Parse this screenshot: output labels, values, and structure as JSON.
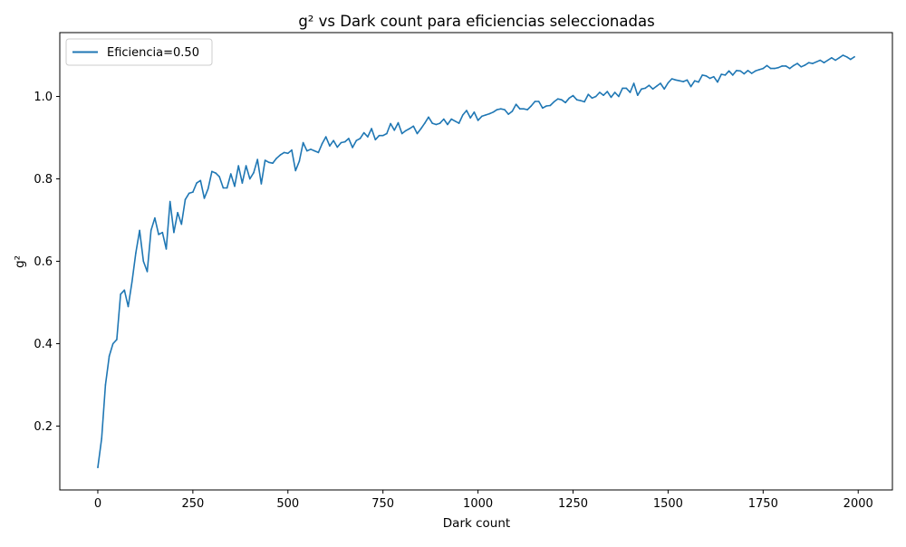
{
  "chart_data": {
    "type": "line",
    "title": "g² vs Dark count para eficiencias seleccionadas",
    "xlabel": "Dark count",
    "ylabel": "g²",
    "xlim": [
      -100,
      2090
    ],
    "ylim": [
      0.045,
      1.155
    ],
    "xticks": [
      0,
      250,
      500,
      750,
      1000,
      1250,
      1500,
      1750,
      2000
    ],
    "xtick_labels": [
      "0",
      "250",
      "500",
      "750",
      "1000",
      "1250",
      "1500",
      "1750",
      "2000"
    ],
    "yticks": [
      0.2,
      0.4,
      0.6,
      0.8,
      1.0
    ],
    "ytick_labels": [
      "0.2",
      "0.4",
      "0.6",
      "0.8",
      "1.0"
    ],
    "grid": false,
    "legend_position": "top-left",
    "series": [
      {
        "name": "Eficiencia=0.50",
        "color": "#1f77b4",
        "x": [
          0,
          10,
          20,
          30,
          40,
          50,
          60,
          70,
          80,
          90,
          100,
          110,
          120,
          130,
          140,
          150,
          160,
          170,
          180,
          190,
          200,
          210,
          220,
          230,
          240,
          250,
          260,
          270,
          280,
          290,
          300,
          310,
          320,
          330,
          340,
          350,
          360,
          370,
          380,
          390,
          400,
          410,
          420,
          430,
          440,
          450,
          460,
          470,
          480,
          490,
          500,
          510,
          520,
          530,
          540,
          550,
          560,
          570,
          580,
          590,
          600,
          610,
          620,
          630,
          640,
          650,
          660,
          670,
          680,
          690,
          700,
          710,
          720,
          730,
          740,
          750,
          760,
          770,
          780,
          790,
          800,
          810,
          820,
          830,
          840,
          850,
          860,
          870,
          880,
          890,
          900,
          910,
          920,
          930,
          940,
          950,
          960,
          970,
          980,
          990,
          1000,
          1010,
          1020,
          1030,
          1040,
          1050,
          1060,
          1070,
          1080,
          1090,
          1100,
          1110,
          1120,
          1130,
          1140,
          1150,
          1160,
          1170,
          1180,
          1190,
          1200,
          1210,
          1220,
          1230,
          1240,
          1250,
          1260,
          1270,
          1280,
          1290,
          1300,
          1310,
          1320,
          1330,
          1340,
          1350,
          1360,
          1370,
          1380,
          1390,
          1400,
          1410,
          1420,
          1430,
          1440,
          1450,
          1460,
          1470,
          1480,
          1490,
          1500,
          1510,
          1520,
          1530,
          1540,
          1550,
          1560,
          1570,
          1580,
          1590,
          1600,
          1610,
          1620,
          1630,
          1640,
          1650,
          1660,
          1670,
          1680,
          1690,
          1700,
          1710,
          1720,
          1730,
          1740,
          1750,
          1760,
          1770,
          1780,
          1790,
          1800,
          1810,
          1820,
          1830,
          1840,
          1850,
          1860,
          1870,
          1880,
          1890,
          1900,
          1910,
          1920,
          1930,
          1940,
          1950,
          1960,
          1970,
          1980,
          1990
        ],
        "values": [
          0.1,
          0.17,
          0.3,
          0.37,
          0.4,
          0.41,
          0.52,
          0.53,
          0.49,
          0.55,
          0.62,
          0.675,
          0.6,
          0.575,
          0.675,
          0.705,
          0.665,
          0.67,
          0.63,
          0.745,
          0.67,
          0.718,
          0.69,
          0.75,
          0.765,
          0.768,
          0.79,
          0.796,
          0.753,
          0.776,
          0.818,
          0.814,
          0.805,
          0.778,
          0.778,
          0.812,
          0.782,
          0.832,
          0.79,
          0.832,
          0.8,
          0.815,
          0.847,
          0.788,
          0.845,
          0.84,
          0.838,
          0.85,
          0.858,
          0.864,
          0.862,
          0.87,
          0.82,
          0.843,
          0.888,
          0.868,
          0.872,
          0.868,
          0.864,
          0.885,
          0.902,
          0.88,
          0.893,
          0.877,
          0.888,
          0.89,
          0.898,
          0.876,
          0.893,
          0.898,
          0.912,
          0.902,
          0.922,
          0.895,
          0.905,
          0.905,
          0.91,
          0.934,
          0.918,
          0.936,
          0.91,
          0.917,
          0.922,
          0.928,
          0.91,
          0.922,
          0.935,
          0.95,
          0.935,
          0.932,
          0.935,
          0.945,
          0.932,
          0.945,
          0.94,
          0.935,
          0.955,
          0.966,
          0.948,
          0.962,
          0.942,
          0.952,
          0.955,
          0.958,
          0.962,
          0.968,
          0.97,
          0.968,
          0.957,
          0.964,
          0.981,
          0.97,
          0.97,
          0.968,
          0.977,
          0.988,
          0.988,
          0.972,
          0.977,
          0.978,
          0.987,
          0.994,
          0.992,
          0.985,
          0.996,
          1.002,
          0.992,
          0.99,
          0.987,
          1.005,
          0.996,
          1.0,
          1.01,
          1.003,
          1.012,
          0.998,
          1.01,
          1.0,
          1.02,
          1.02,
          1.01,
          1.032,
          1.003,
          1.018,
          1.02,
          1.027,
          1.018,
          1.025,
          1.032,
          1.018,
          1.033,
          1.043,
          1.04,
          1.038,
          1.036,
          1.04,
          1.024,
          1.038,
          1.035,
          1.052,
          1.05,
          1.044,
          1.048,
          1.035,
          1.054,
          1.052,
          1.062,
          1.052,
          1.063,
          1.062,
          1.055,
          1.063,
          1.056,
          1.062,
          1.065,
          1.068,
          1.075,
          1.068,
          1.068,
          1.07,
          1.074,
          1.074,
          1.068,
          1.075,
          1.08,
          1.072,
          1.076,
          1.082,
          1.08,
          1.084,
          1.088,
          1.082,
          1.088,
          1.094,
          1.088,
          1.094,
          1.1,
          1.096,
          1.09,
          1.096
        ]
      }
    ]
  }
}
